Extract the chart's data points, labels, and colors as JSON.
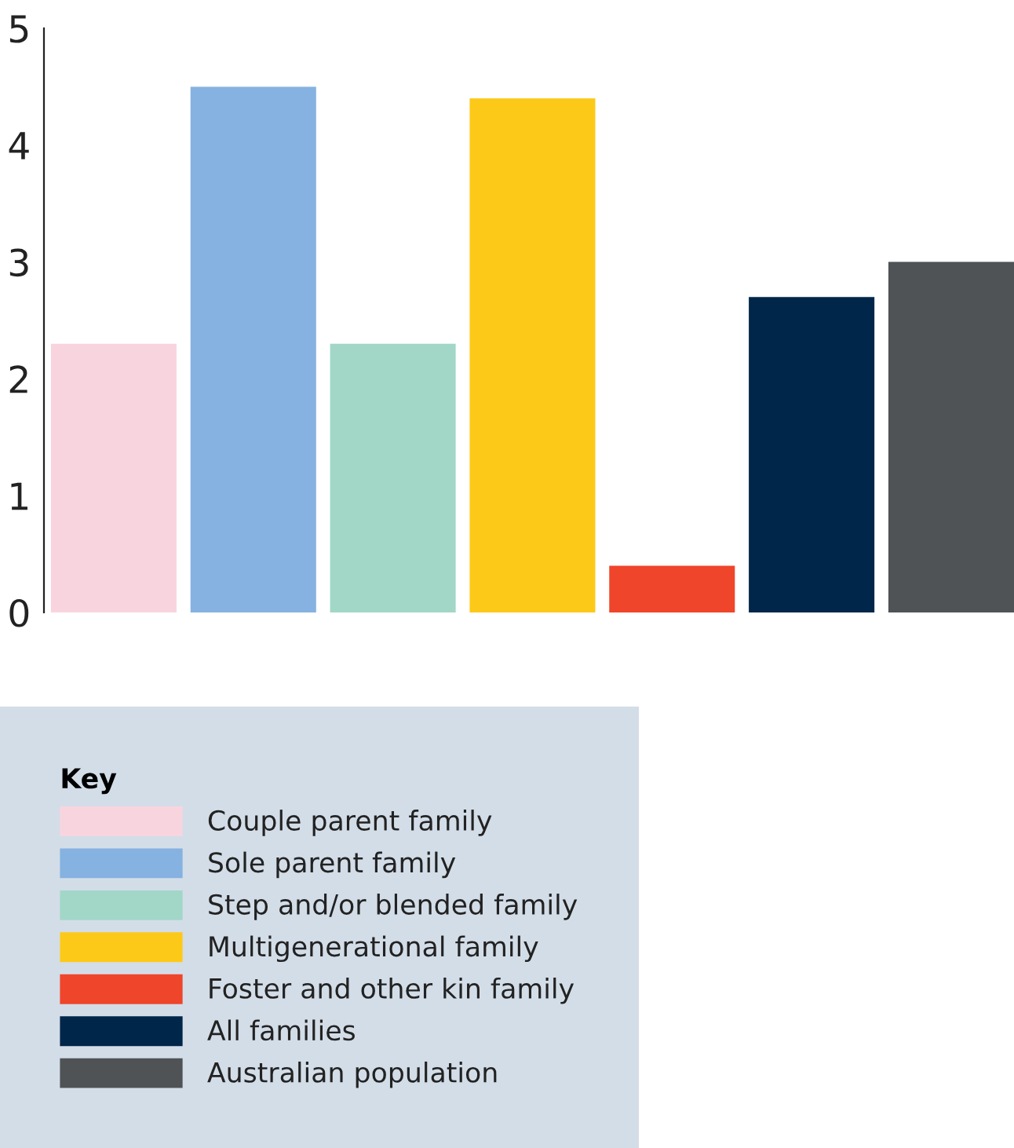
{
  "chart_data": {
    "type": "bar",
    "stacked": true,
    "categories": [
      null,
      null,
      null,
      null,
      null,
      null,
      null
    ],
    "series": [
      {
        "name": "Couple parent family",
        "color": "#f8d5de",
        "values": [
          2.3,
          null,
          null,
          null,
          null,
          null,
          null
        ]
      },
      {
        "name": "Sole parent family",
        "color": "#85b2e0",
        "values": [
          null,
          4.5,
          null,
          null,
          null,
          null,
          null
        ]
      },
      {
        "name": "Step and/or blended family",
        "color": "#a2d7c7",
        "values": [
          null,
          null,
          2.3,
          null,
          null,
          null,
          null
        ]
      },
      {
        "name": "Multigenerational family",
        "color": "#fdc918",
        "values": [
          null,
          null,
          null,
          4.4,
          null,
          null,
          null
        ]
      },
      {
        "name": "Foster and other kin family",
        "color": "#ef452b",
        "values": [
          null,
          null,
          null,
          null,
          0.4,
          null,
          null
        ]
      },
      {
        "name": "All families",
        "color": "#00264a",
        "values": [
          null,
          null,
          null,
          null,
          null,
          2.7,
          null
        ]
      },
      {
        "name": "Australian population",
        "color": "#4f5356",
        "values": [
          null,
          null,
          null,
          null,
          null,
          null,
          3.0
        ]
      }
    ],
    "legend_title": "Key",
    "legend": "bottom left",
    "ylim": [
      0,
      5
    ],
    "yticks": [
      0,
      1,
      2,
      3,
      4,
      5
    ],
    "grid": false
  }
}
